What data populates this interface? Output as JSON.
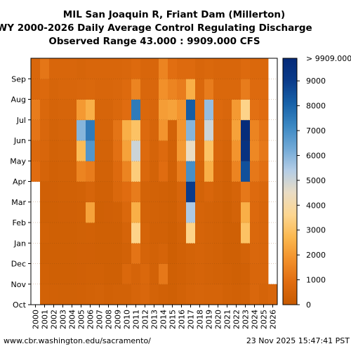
{
  "chart_data": {
    "type": "heatmap",
    "title_lines": [
      "MIL San Joaquin R, Friant Dam (Millerton)",
      "WY 2000-2026 Daily Average Control Regulating Discharge",
      "Observed Range 43.000 : 9909.000 CFS"
    ],
    "x_categories": [
      "2000",
      "2001",
      "2002",
      "2003",
      "2004",
      "2005",
      "2006",
      "2007",
      "2008",
      "2009",
      "2010",
      "2011",
      "2012",
      "2013",
      "2014",
      "2015",
      "2016",
      "2017",
      "2018",
      "2019",
      "2020",
      "2021",
      "2022",
      "2023",
      "2024",
      "2025",
      "2026"
    ],
    "y_categories": [
      "Oct",
      "Nov",
      "Dec",
      "Jan",
      "Feb",
      "Mar",
      "Apr",
      "May",
      "Jun",
      "Jul",
      "Aug",
      "Sep"
    ],
    "value_min": 43.0,
    "value_max": 9909.0,
    "colorbar": {
      "ticks": [
        0,
        1000,
        2000,
        3000,
        4000,
        5000,
        6000,
        7000,
        8000,
        9000
      ],
      "top_label": "> 9909.000",
      "colors": [
        "#c75a00",
        "#e06c10",
        "#f2902a",
        "#fbb84f",
        "#fdd690",
        "#e9dcc4",
        "#b4cde6",
        "#6fa8d6",
        "#3a87c2",
        "#1761a8",
        "#0a3b8a",
        "#062a78"
      ]
    },
    "monthly_discharge_cfs": {
      "2000": [
        null,
        null,
        null,
        null,
        null,
        null,
        900,
        750,
        1100,
        1300,
        700,
        650
      ],
      "2001": [
        400,
        350,
        300,
        350,
        300,
        320,
        500,
        600,
        650,
        700,
        750,
        1150
      ],
      "2002": [
        350,
        300,
        300,
        300,
        300,
        320,
        350,
        400,
        450,
        500,
        550,
        600
      ],
      "2003": [
        330,
        300,
        300,
        300,
        320,
        350,
        400,
        450,
        500,
        550,
        600,
        620
      ],
      "2004": [
        330,
        300,
        300,
        300,
        320,
        350,
        400,
        450,
        500,
        550,
        600,
        620
      ],
      "2005": [
        350,
        320,
        320,
        330,
        350,
        400,
        1500,
        2800,
        6000,
        2000,
        650,
        550
      ],
      "2006": [
        400,
        350,
        320,
        350,
        2200,
        550,
        1300,
        6800,
        7500,
        2500,
        700,
        600
      ],
      "2007": [
        450,
        350,
        300,
        300,
        300,
        350,
        400,
        450,
        500,
        550,
        600,
        600
      ],
      "2008": [
        350,
        300,
        300,
        300,
        320,
        350,
        400,
        450,
        500,
        550,
        600,
        600
      ],
      "2009": [
        400,
        300,
        300,
        300,
        350,
        700,
        800,
        1000,
        1100,
        700,
        650,
        600
      ],
      "2010": [
        400,
        700,
        400,
        500,
        700,
        900,
        1500,
        2200,
        2500,
        900,
        800,
        650
      ],
      "2011": [
        550,
        500,
        1100,
        3500,
        2500,
        1300,
        3300,
        5000,
        3000,
        7500,
        1500,
        800
      ],
      "2012": [
        650,
        700,
        500,
        500,
        450,
        450,
        700,
        800,
        800,
        700,
        650,
        600
      ],
      "2013": [
        450,
        400,
        380,
        360,
        380,
        400,
        450,
        500,
        550,
        600,
        650,
        620
      ],
      "2014": [
        350,
        1200,
        500,
        350,
        350,
        350,
        900,
        800,
        1900,
        2100,
        1800,
        1500
      ],
      "2015": [
        300,
        300,
        250,
        250,
        300,
        300,
        350,
        400,
        450,
        2200,
        1500,
        950
      ],
      "2016": [
        400,
        350,
        350,
        400,
        500,
        550,
        1300,
        2000,
        1900,
        1900,
        1300,
        800
      ],
      "2017": [
        500,
        450,
        450,
        3500,
        5500,
        9000,
        7000,
        4500,
        6000,
        8200,
        2500,
        800
      ],
      "2018": [
        550,
        500,
        500,
        500,
        500,
        450,
        500,
        700,
        800,
        850,
        700,
        600
      ],
      "2019": [
        500,
        450,
        450,
        450,
        450,
        600,
        2500,
        3000,
        5000,
        5800,
        1300,
        700
      ],
      "2020": [
        500,
        400,
        400,
        400,
        400,
        450,
        500,
        600,
        700,
        750,
        700,
        600
      ],
      "2021": [
        400,
        350,
        300,
        300,
        300,
        350,
        400,
        500,
        600,
        650,
        700,
        600
      ],
      "2022": [
        350,
        300,
        300,
        300,
        450,
        500,
        1500,
        1900,
        2200,
        2000,
        700,
        600
      ],
      "2023": [
        400,
        350,
        450,
        3000,
        2500,
        1200,
        8500,
        9500,
        9800,
        3500,
        1300,
        800
      ],
      "2024": [
        650,
        600,
        650,
        700,
        750,
        800,
        1200,
        1600,
        1500,
        1000,
        800,
        700
      ],
      "2025": [
        500,
        600,
        600,
        600,
        600,
        700,
        1000,
        1200,
        1100,
        900,
        800,
        700
      ],
      "2026": [
        600,
        null,
        null,
        null,
        null,
        null,
        null,
        null,
        null,
        null,
        null,
        null
      ]
    }
  },
  "footer": {
    "left": "www.cbr.washington.edu/sacramento/",
    "right": "23 Nov 2025 15:47:41 PST"
  }
}
